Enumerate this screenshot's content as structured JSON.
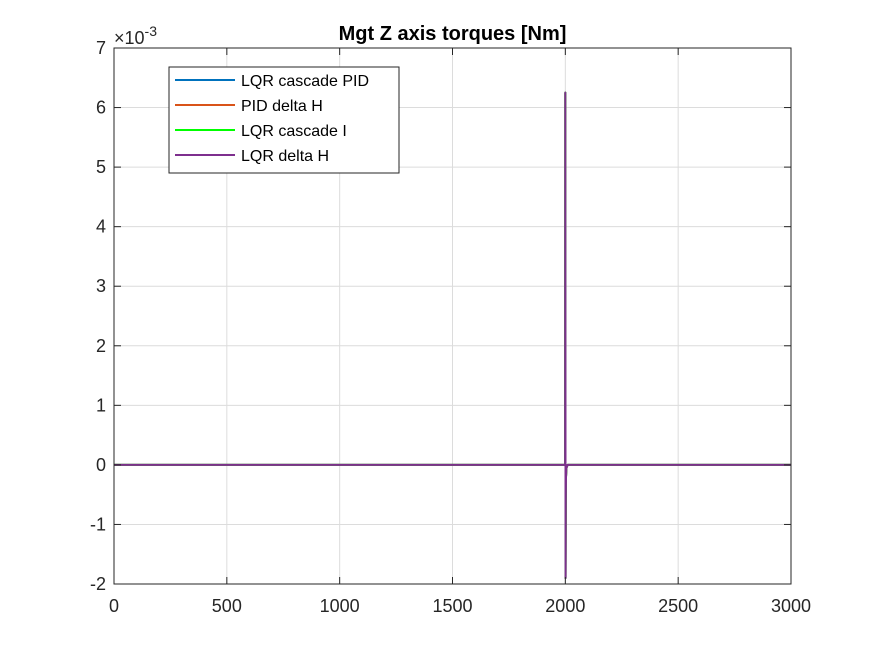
{
  "chart_data": {
    "type": "line",
    "title": "Mgt Z axis torques [Nm]",
    "xlabel": "",
    "ylabel": "",
    "y_exponent_base": "10",
    "y_exponent_power": "-3",
    "xlim": [
      0,
      3000
    ],
    "ylim": [
      -0.002,
      0.007
    ],
    "x_ticks": [
      0,
      500,
      1000,
      1500,
      2000,
      2500,
      3000
    ],
    "x_tick_labels": [
      "0",
      "500",
      "1000",
      "1500",
      "2000",
      "2500",
      "3000"
    ],
    "y_ticks": [
      -0.002,
      -0.001,
      0,
      0.001,
      0.002,
      0.003,
      0.004,
      0.005,
      0.006,
      0.007
    ],
    "y_tick_labels": [
      "-2",
      "-1",
      "0",
      "1",
      "2",
      "3",
      "4",
      "5",
      "6",
      "7"
    ],
    "grid": true,
    "legend_position": "top-left",
    "series": [
      {
        "name": "LQR cascade PID",
        "color": "#0072BD",
        "x": [
          0,
          1999,
          2000,
          2001,
          2002,
          2003,
          2005,
          2010,
          3000
        ],
        "y": [
          0,
          0,
          0.00625,
          -0.0019,
          -0.0006,
          -0.0002,
          -5e-05,
          0,
          0
        ]
      },
      {
        "name": "PID delta H",
        "color": "#D95319",
        "x": [
          0,
          1999,
          2000,
          2001,
          2002,
          2003,
          2005,
          2010,
          3000
        ],
        "y": [
          0,
          0,
          0.00625,
          -0.0019,
          -0.0006,
          -0.0002,
          -5e-05,
          0,
          0
        ]
      },
      {
        "name": "LQR cascade I",
        "color": "#00FF00",
        "x": [
          0,
          1999,
          2000,
          2001,
          2002,
          2003,
          2005,
          2010,
          3000
        ],
        "y": [
          0,
          0,
          0.00625,
          -0.0019,
          -0.0006,
          -0.0002,
          -5e-05,
          0,
          0
        ]
      },
      {
        "name": "LQR delta H",
        "color": "#7E2F8E",
        "x": [
          0,
          1999,
          2000,
          2001,
          2002,
          2003,
          2005,
          2010,
          3000
        ],
        "y": [
          0,
          0,
          0.00625,
          -0.0019,
          -0.0006,
          -0.0002,
          -5e-05,
          0,
          0
        ]
      }
    ]
  }
}
